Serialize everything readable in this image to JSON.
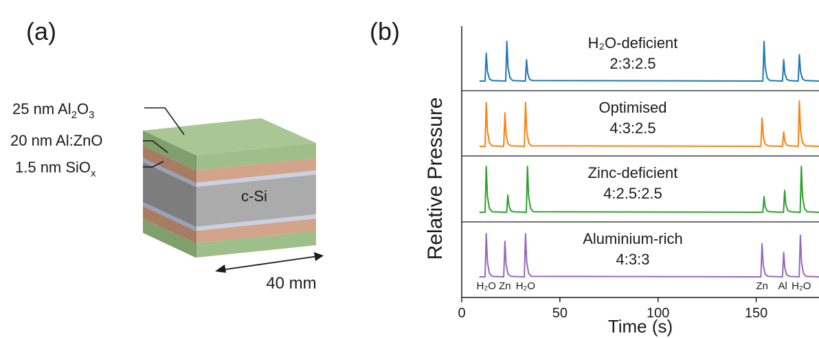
{
  "panel_a": {
    "label": "(a)",
    "layers": {
      "al2o3": {
        "prefix": "25 nm Al",
        "sub1": "2",
        "mid": "O",
        "sub2": "3"
      },
      "azo": {
        "text": "20 nm Al:ZnO"
      },
      "siox": {
        "prefix": "1.5 nm SiO",
        "sub": "x"
      }
    },
    "substrate_label": "c-Si",
    "dimension_label": "40 mm",
    "colors": {
      "al2o3": "#9fbf8a",
      "azo": "#c8977a",
      "siox": "#bfc8dc",
      "silicon": "#a9a9a9"
    }
  },
  "panel_b": {
    "label": "(b)"
  },
  "chart_data": {
    "type": "line",
    "xlabel": "Time (s)",
    "ylabel": "Relative Pressure",
    "xlim": [
      0,
      182
    ],
    "xticks": [
      0,
      50,
      100,
      150
    ],
    "yticks": [],
    "grid": false,
    "series": [
      {
        "name": "H2O-deficient",
        "title": "H₂O-deficient",
        "ratio": "2:3:2.5",
        "color": "#1f77b4",
        "baseline_x": [
          9,
          182
        ],
        "peaks": [
          {
            "x": 12.5,
            "height": 0.55
          },
          {
            "x": 23,
            "height": 0.78
          },
          {
            "x": 33,
            "height": 0.42
          },
          {
            "x": 154,
            "height": 0.78
          },
          {
            "x": 164,
            "height": 0.42
          },
          {
            "x": 172,
            "height": 0.52
          }
        ]
      },
      {
        "name": "Optimised",
        "title": "Optimised",
        "ratio": "4:3:2.5",
        "color": "#ff7f0e",
        "baseline_x": [
          9,
          182
        ],
        "peaks": [
          {
            "x": 12.5,
            "height": 0.85
          },
          {
            "x": 22,
            "height": 0.65
          },
          {
            "x": 32.5,
            "height": 0.85
          },
          {
            "x": 153,
            "height": 0.55
          },
          {
            "x": 164,
            "height": 0.28
          },
          {
            "x": 172,
            "height": 0.88
          }
        ]
      },
      {
        "name": "Zinc-deficient",
        "title": "Zinc-deficient",
        "ratio": "4:2.5:2.5",
        "color": "#2ca02c",
        "baseline_x": [
          9,
          182
        ],
        "peaks": [
          {
            "x": 12.5,
            "height": 0.88
          },
          {
            "x": 23.5,
            "height": 0.33
          },
          {
            "x": 33.5,
            "height": 0.88
          },
          {
            "x": 154,
            "height": 0.3
          },
          {
            "x": 164.5,
            "height": 0.42
          },
          {
            "x": 173,
            "height": 0.88
          }
        ]
      },
      {
        "name": "Aluminium-rich",
        "title": "Aluminium-rich",
        "ratio": "4:3:3",
        "color": "#9467bd",
        "baseline_x": [
          9,
          182
        ],
        "peaks": [
          {
            "x": 12.5,
            "height": 0.85
          },
          {
            "x": 22,
            "height": 0.7
          },
          {
            "x": 32.5,
            "height": 0.85
          },
          {
            "x": 153,
            "height": 0.65
          },
          {
            "x": 164,
            "height": 0.48
          },
          {
            "x": 172.5,
            "height": 0.82
          }
        ]
      }
    ],
    "pulse_labels": [
      {
        "x": 12.5,
        "text": "H₂O"
      },
      {
        "x": 22,
        "text": "Zn"
      },
      {
        "x": 32.5,
        "text": "H₂O"
      },
      {
        "x": 153,
        "text": "Zn"
      },
      {
        "x": 163.5,
        "text": "Al"
      },
      {
        "x": 173,
        "text": "H₂O"
      }
    ]
  }
}
